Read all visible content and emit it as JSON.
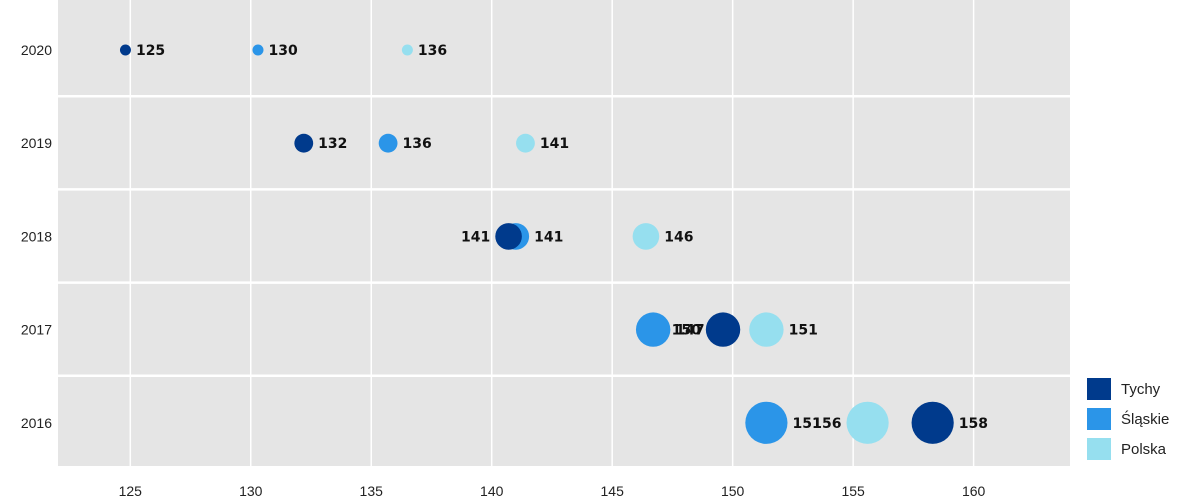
{
  "chart_data": {
    "type": "scatter",
    "categories": [
      "2020",
      "2019",
      "2018",
      "2017",
      "2016"
    ],
    "x_ticks": [
      125,
      130,
      135,
      140,
      145,
      150,
      155,
      160
    ],
    "xlim": [
      122,
      164
    ],
    "grid": true,
    "legend_position": "bottom-right",
    "series": [
      {
        "name": "Tychy",
        "color": "#003A8C",
        "values": [
          124.8,
          132.2,
          140.7,
          149.6,
          158.3
        ],
        "labels": [
          "125",
          "132",
          "141",
          "150",
          "158"
        ]
      },
      {
        "name": "Śląskie",
        "color": "#2B95E8",
        "values": [
          130.3,
          135.7,
          141.0,
          146.7,
          151.4
        ],
        "labels": [
          "130",
          "136",
          "141",
          "147",
          "151"
        ]
      },
      {
        "name": "Polska",
        "color": "#96DFEF",
        "values": [
          136.5,
          141.4,
          146.4,
          151.4,
          155.6
        ],
        "labels": [
          "136",
          "141",
          "146",
          "151",
          "156"
        ]
      }
    ],
    "marker_sizes": [
      1,
      2,
      3,
      4,
      5
    ]
  }
}
